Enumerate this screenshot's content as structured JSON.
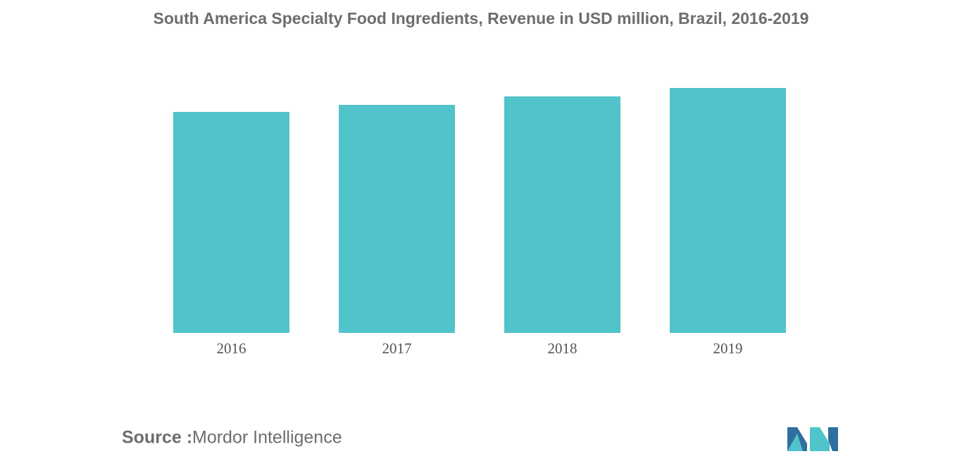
{
  "chart_data": {
    "type": "bar",
    "title": "South America Specialty Food Ingredients, Revenue in USD million, Brazil, 2016-2019",
    "categories": [
      "2016",
      "2017",
      "2018",
      "2019"
    ],
    "values": [
      314,
      324,
      336,
      348
    ],
    "color": "#51c3ca",
    "ylim": [
      0,
      350
    ],
    "grid": false,
    "source_label": "Source :",
    "source": "Mordor Intelligence"
  }
}
